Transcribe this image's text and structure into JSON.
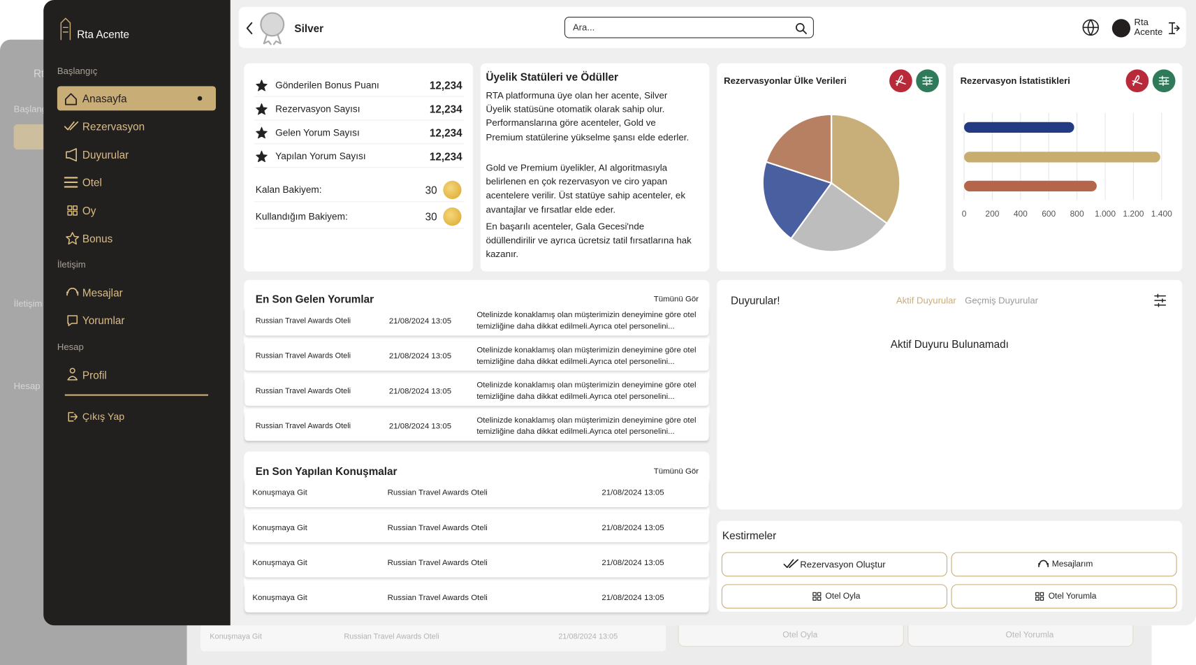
{
  "ghost": {
    "brand": "Rta Acente",
    "sections": [
      "Başlangıç",
      "İletişim",
      "Hesap"
    ],
    "row": {
      "action": "Konuşmaya Git",
      "hotel": "Russian Travel Awards Oteli",
      "date": "21/08/2024 13:05"
    },
    "buttons": [
      "Otel Oyla",
      "Otel Yorumla"
    ]
  },
  "sidebar": {
    "brand": "Rta Acente",
    "sections": [
      {
        "title": "Başlangıç",
        "items": [
          "Anasayfa",
          "Rezervasyon",
          "Duyurular",
          "Otel",
          "Oy",
          "Bonus"
        ]
      },
      {
        "title": "İletişim",
        "items": [
          "Mesajlar",
          "Yorumlar"
        ]
      },
      {
        "title": "Hesap",
        "items": [
          "Profil"
        ]
      }
    ],
    "logout": "Çıkış Yap"
  },
  "topbar": {
    "status": "Silver",
    "search_placeholder": "Ara...",
    "user": "Rta Acente"
  },
  "stats": {
    "rows": [
      {
        "label": "Gönderilen Bonus Puanı",
        "value": "12,234"
      },
      {
        "label": "Rezervasyon Sayısı",
        "value": "12,234"
      },
      {
        "label": "Gelen Yorum Sayısı",
        "value": "12,234"
      },
      {
        "label": "Yapılan Yorum Sayısı",
        "value": "12,234"
      }
    ],
    "balances": [
      {
        "label": "Kalan Bakiyem:",
        "value": "30"
      },
      {
        "label": "Kullandığım Bakiyem:",
        "value": "30"
      }
    ]
  },
  "membership": {
    "title": "Üyelik Statüleri ve Ödüller",
    "paragraphs": [
      "RTA platformuna üye olan her acente, Silver Üyelik statüsüne otomatik olarak sahip olur. Performanslarına göre acenteler, Gold ve Premium statülerine yükselme şansı elde ederler.",
      "Gold ve Premium üyelikler, AI algoritmasıyla belirlenen en çok rezervasyon ve ciro yapan acentelere verilir. Üst statüye sahip acenteler, ek avantajlar ve fırsatlar elde eder.",
      "En başarılı acenteler, Gala Gecesi'nde ödüllendirilir ve ayrıca ücretsiz tatil fırsatlarına hak kazanır."
    ]
  },
  "chart_data": [
    {
      "type": "pie",
      "title": "Rezervasyonlar Ülke Verileri",
      "values": [
        35,
        25,
        20,
        20
      ],
      "colors": [
        "#c8ae78",
        "#bdbdbd",
        "#4a5fa0",
        "#b88063"
      ]
    },
    {
      "type": "bar",
      "orientation": "horizontal",
      "title": "Rezervasyon İstatistikleri",
      "series": [
        {
          "values": [
            780,
            1390,
            940
          ],
          "colors": [
            "#233b82",
            "#c8ae6e",
            "#b5654a"
          ]
        }
      ],
      "xlim": [
        0,
        1400
      ],
      "xticks": [
        0,
        200,
        400,
        600,
        800,
        {
          "value": 1000,
          "label": "1.000"
        },
        {
          "value": 1200,
          "label": "1.200"
        },
        {
          "value": 1400,
          "label": "1.400"
        }
      ],
      "grid": true
    }
  ],
  "comments": {
    "title": "En Son Gelen Yorumlar",
    "see_all": "Tümünü Gör",
    "rows": [
      {
        "hotel": "Russian Travel Awards Oteli",
        "date": "21/08/2024 13:05",
        "text": "Otelinizde konaklamış olan müşterimizin deneyimine göre otel temizliğine daha dikkat edilmeli.Ayrıca otel personelini..."
      },
      {
        "hotel": "Russian Travel Awards Oteli",
        "date": "21/08/2024 13:05",
        "text": "Otelinizde konaklamış olan müşterimizin deneyimine göre otel temizliğine daha dikkat edilmeli.Ayrıca otel personelini..."
      },
      {
        "hotel": "Russian Travel Awards Oteli",
        "date": "21/08/2024 13:05",
        "text": "Otelinizde konaklamış olan müşterimizin deneyimine göre otel temizliğine daha dikkat edilmeli.Ayrıca otel personelini..."
      },
      {
        "hotel": "Russian Travel Awards Oteli",
        "date": "21/08/2024 13:05",
        "text": "Otelinizde konaklamış olan müşterimizin deneyimine göre otel temizliğine daha dikkat edilmeli.Ayrıca otel personelini..."
      }
    ]
  },
  "conversations": {
    "title": "En Son Yapılan Konuşmalar",
    "see_all": "Tümünü Gör",
    "rows": [
      {
        "action": "Konuşmaya Git",
        "hotel": "Russian Travel Awards Oteli",
        "date": "21/08/2024 13:05"
      },
      {
        "action": "Konuşmaya Git",
        "hotel": "Russian Travel Awards Oteli",
        "date": "21/08/2024 13:05"
      },
      {
        "action": "Konuşmaya Git",
        "hotel": "Russian Travel Awards Oteli",
        "date": "21/08/2024 13:05"
      },
      {
        "action": "Konuşmaya Git",
        "hotel": "Russian Travel Awards Oteli",
        "date": "21/08/2024 13:05"
      }
    ]
  },
  "announcements": {
    "title": "Duyurular!",
    "tabs": [
      "Aktif Duyurular",
      "Geçmiş Duyurular"
    ],
    "empty": "Aktif Duyuru Bulunamadı"
  },
  "shortcuts": {
    "title": "Kestirmeler",
    "buttons": [
      "Rezervasyon Oluştur",
      "Mesajlarım",
      "Otel Oyla",
      "Otel Yorumla"
    ]
  }
}
